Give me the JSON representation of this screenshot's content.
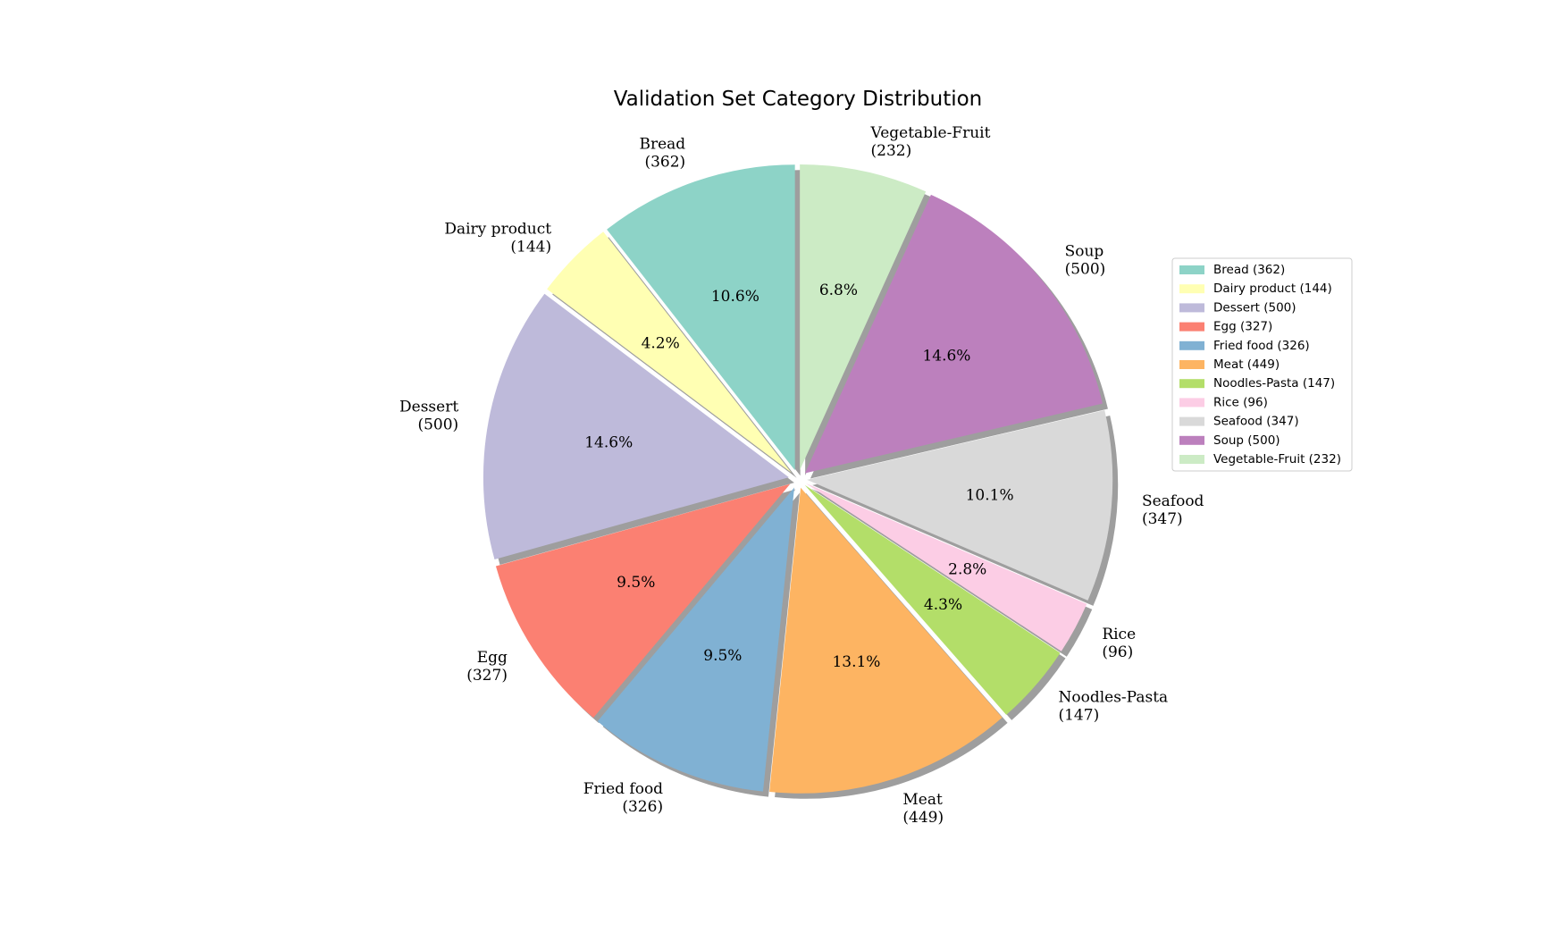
{
  "chart_data": {
    "type": "pie",
    "title": "Validation Set Category Distribution",
    "categories": [
      "Bread",
      "Dairy product",
      "Dessert",
      "Egg",
      "Fried food",
      "Meat",
      "Noodles-Pasta",
      "Rice",
      "Seafood",
      "Soup",
      "Vegetable-Fruit"
    ],
    "values": [
      362,
      144,
      500,
      327,
      326,
      449,
      147,
      96,
      347,
      500,
      232
    ],
    "slice_labels": [
      [
        "Bread",
        "(362)"
      ],
      [
        "Dairy product",
        "(144)"
      ],
      [
        "Dessert",
        "(500)"
      ],
      [
        "Egg",
        "(327)"
      ],
      [
        "Fried food",
        "(326)"
      ],
      [
        "Meat",
        "(449)"
      ],
      [
        "Noodles-Pasta",
        "(147)"
      ],
      [
        "Rice",
        "(96)"
      ],
      [
        "Seafood",
        "(347)"
      ],
      [
        "Soup",
        "(500)"
      ],
      [
        "Vegetable-Fruit",
        "(232)"
      ]
    ],
    "percent_labels": [
      "10.6%",
      "4.2%",
      "14.6%",
      "9.5%",
      "9.5%",
      "13.1%",
      "4.3%",
      "2.8%",
      "10.1%",
      "14.6%",
      "6.8%"
    ],
    "colors": [
      "#8dd3c7",
      "#ffffb3",
      "#bebada",
      "#fb8072",
      "#80b1d3",
      "#fdb462",
      "#b3de69",
      "#fccde5",
      "#d9d9d9",
      "#bc80bd",
      "#ccebc5"
    ],
    "legend": {
      "placement": "right",
      "entries": [
        "Bread (362)",
        "Dairy product (144)",
        "Dessert (500)",
        "Egg (327)",
        "Fried food (326)",
        "Meat (449)",
        "Noodles-Pasta (147)",
        "Rice (96)",
        "Seafood (347)",
        "Soup (500)",
        "Vegetable-Fruit (232)"
      ]
    },
    "start_angle": 90,
    "direction": "counterclockwise",
    "exploded": true,
    "shadow": true
  }
}
